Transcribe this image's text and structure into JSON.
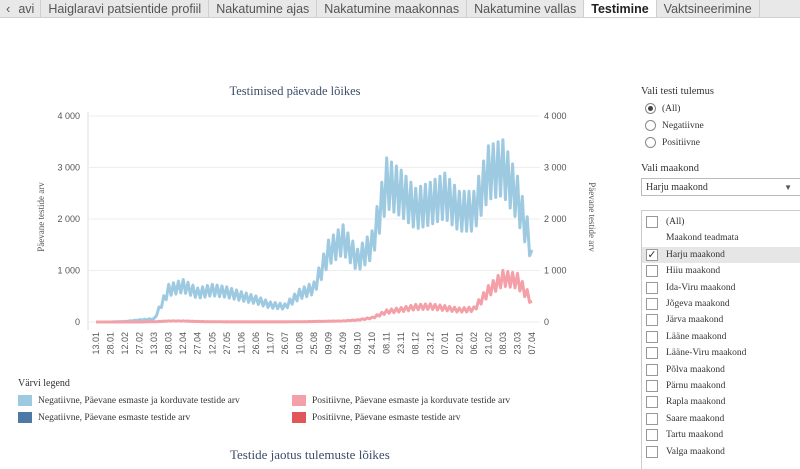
{
  "tabs": {
    "back_label": "avi",
    "items": [
      {
        "label": "Haiglaravi patsientide profiil",
        "active": false
      },
      {
        "label": "Nakatumine ajas",
        "active": false
      },
      {
        "label": "Nakatumine maakonnas",
        "active": false
      },
      {
        "label": "Nakatumine vallas",
        "active": false
      },
      {
        "label": "Testimine",
        "active": true
      },
      {
        "label": "Vaktsineerimine",
        "active": false
      }
    ]
  },
  "chart": {
    "title": "Testimised päevade lõikes",
    "ylabel": "Päevane testide arv",
    "ylabel_right": "Päevane testide arv"
  },
  "legend": {
    "title": "Värvi legend",
    "items": [
      {
        "label": "Negatiivne, Päevane esmaste ja korduvate testide arv",
        "color": "#9ecae1"
      },
      {
        "label": "Positiivne, Päevane esmaste ja korduvate testide arv",
        "color": "#f4a0a8"
      },
      {
        "label": "Negatiivne, Päevane esmaste testide arv",
        "color": "#4e79a7"
      },
      {
        "label": "Positiivne, Päevane esmaste testide arv",
        "color": "#e15759"
      }
    ]
  },
  "section_title": "Testide jaotus tulemuste lõikes",
  "filters": {
    "result_label": "Vali testi tulemus",
    "result_options": [
      {
        "label": "(All)",
        "checked": true
      },
      {
        "label": "Negatiivne",
        "checked": false
      },
      {
        "label": "Positiivne",
        "checked": false
      }
    ],
    "county_label": "Vali maakond",
    "county_selected": "Harju maakond",
    "county_list": [
      {
        "label": "(All)",
        "checked": false,
        "checkbox": true
      },
      {
        "label": "Maakond teadmata",
        "checked": false,
        "checkbox": false
      },
      {
        "label": "Harju maakond",
        "checked": true,
        "checkbox": true
      },
      {
        "label": "Hiiu maakond",
        "checked": false,
        "checkbox": true
      },
      {
        "label": "Ida-Viru maakond",
        "checked": false,
        "checkbox": true
      },
      {
        "label": "Jõgeva maakond",
        "checked": false,
        "checkbox": true
      },
      {
        "label": "Järva maakond",
        "checked": false,
        "checkbox": true
      },
      {
        "label": "Lääne maakond",
        "checked": false,
        "checkbox": true
      },
      {
        "label": "Lääne-Viru maakond",
        "checked": false,
        "checkbox": true
      },
      {
        "label": "Põlva maakond",
        "checked": false,
        "checkbox": true
      },
      {
        "label": "Pärnu maakond",
        "checked": false,
        "checkbox": true
      },
      {
        "label": "Rapla maakond",
        "checked": false,
        "checkbox": true
      },
      {
        "label": "Saare maakond",
        "checked": false,
        "checkbox": true
      },
      {
        "label": "Tartu maakond",
        "checked": false,
        "checkbox": true
      },
      {
        "label": "Valga maakond",
        "checked": false,
        "checkbox": true
      }
    ]
  },
  "chart_data": {
    "type": "line",
    "title": "Testimised päevade lõikes",
    "ylabel": "Päevane testide arv",
    "ylim": [
      0,
      4000
    ],
    "yticks": [
      0,
      1000,
      2000,
      3000,
      4000
    ],
    "ytick_labels": [
      "0",
      "1 000",
      "2 000",
      "3 000",
      "4 000"
    ],
    "x_tick_labels": [
      "13.01",
      "28.01",
      "12.02",
      "27.02",
      "13.03",
      "28.03",
      "12.04",
      "27.04",
      "12.05",
      "27.05",
      "11.06",
      "26.06",
      "11.07",
      "26.07",
      "10.08",
      "25.08",
      "09.09",
      "24.09",
      "09.10",
      "24.10",
      "08.11",
      "23.11",
      "08.12",
      "23.12",
      "07.01",
      "22.01",
      "06.02",
      "21.02",
      "08.03",
      "23.03",
      "07.04"
    ],
    "series": [
      {
        "name": "Negatiivne, Päevane esmaste ja korduvate testide arv",
        "color": "#9ecae1",
        "values": [
          0,
          0,
          10,
          40,
          60,
          620,
          700,
          560,
          620,
          580,
          500,
          430,
          330,
          300,
          540,
          660,
          1350,
          1600,
          1200,
          1500,
          2700,
          2500,
          2200,
          2300,
          2450,
          2150,
          2150,
          2900,
          3000,
          2400,
          1400
        ]
      },
      {
        "name": "Positiivne, Päevane esmaste ja korduvate testide arv",
        "color": "#f4a0a8",
        "values": [
          0,
          0,
          0,
          0,
          5,
          20,
          20,
          10,
          5,
          3,
          3,
          3,
          3,
          3,
          5,
          10,
          15,
          20,
          40,
          80,
          200,
          240,
          290,
          300,
          270,
          230,
          250,
          600,
          850,
          800,
          400
        ]
      }
    ]
  }
}
